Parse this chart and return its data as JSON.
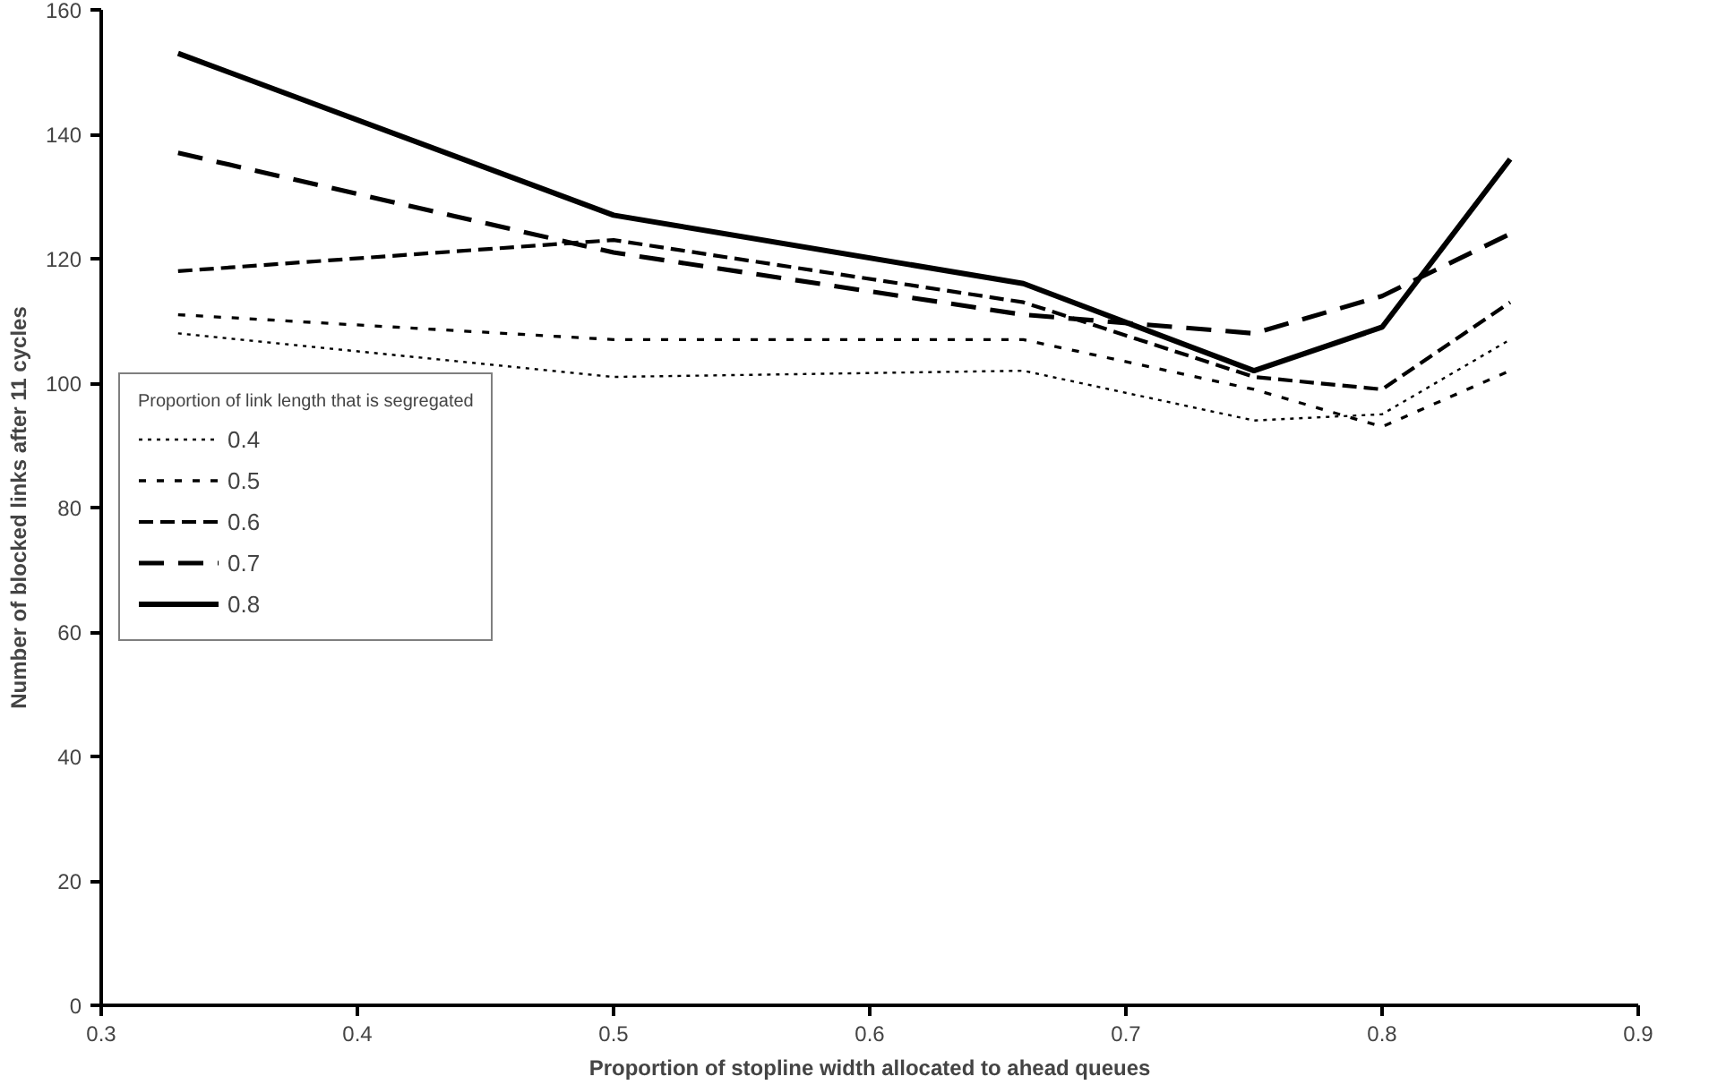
{
  "chart_data": {
    "type": "line",
    "xlabel": "Proportion of stopline width allocated to ahead queues",
    "ylabel": "Number of blocked links after 11 cycles",
    "legend_title": "Proportion of link length that is segregated",
    "x": [
      0.33,
      0.5,
      0.66,
      0.75,
      0.8,
      0.85
    ],
    "series": [
      {
        "name": "0.4",
        "color": "#000000",
        "line_style": "dotted",
        "values": [
          108,
          101,
          102,
          94,
          95,
          107
        ]
      },
      {
        "name": "0.5",
        "color": "#000000",
        "line_style": "dotted",
        "values": [
          111,
          107,
          107,
          99,
          93,
          102
        ]
      },
      {
        "name": "0.6",
        "color": "#000000",
        "line_style": "dashed",
        "values": [
          118,
          123,
          113,
          101,
          99,
          113
        ]
      },
      {
        "name": "0.7",
        "color": "#000000",
        "line_style": "dashed",
        "values": [
          137,
          121,
          111,
          108,
          114,
          124
        ]
      },
      {
        "name": "0.8",
        "color": "#000000",
        "line_style": "solid",
        "values": [
          153,
          127,
          116,
          102,
          109,
          136
        ]
      }
    ],
    "xlim": [
      0.3,
      0.9
    ],
    "xticks": [
      0.3,
      0.4,
      0.5,
      0.6,
      0.7,
      0.8,
      0.9
    ],
    "ylim": [
      0,
      160
    ],
    "yticks": [
      0,
      20,
      40,
      60,
      80,
      100,
      120,
      140,
      160
    ],
    "grid": false,
    "legend": "left",
    "marker": "none"
  }
}
